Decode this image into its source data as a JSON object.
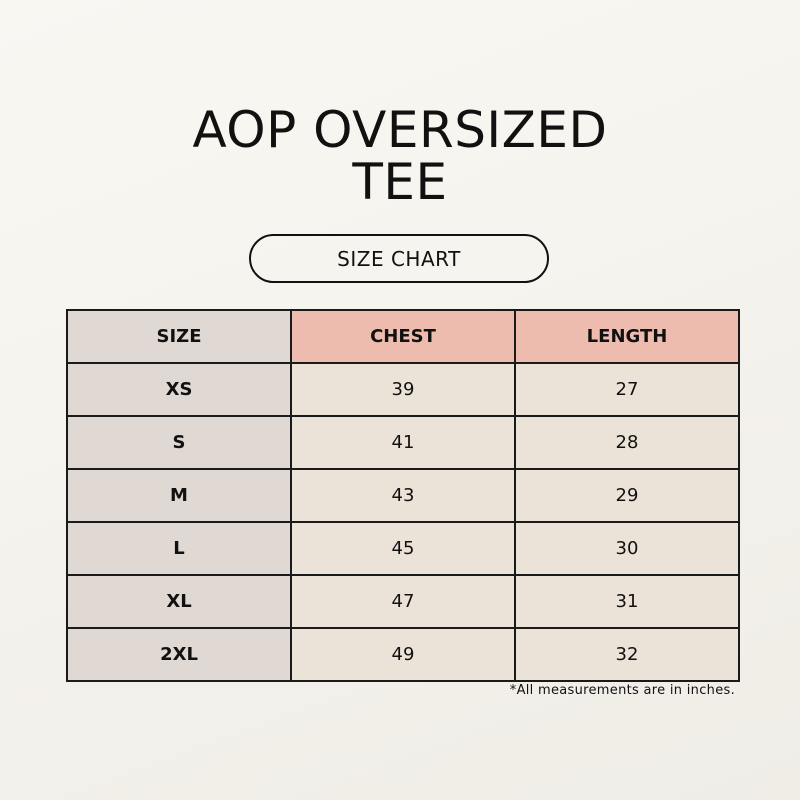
{
  "title_line1": "AOP OVERSIZED",
  "title_line2": "TEE",
  "subtitle": "SIZE CHART",
  "colors": {
    "background": "#f7f5ef",
    "size_column": "#e0d8d3",
    "header": "#eebcae",
    "cells": "#ebe3d8"
  },
  "table": {
    "headers": [
      "SIZE",
      "CHEST",
      "LENGTH"
    ],
    "rows": [
      [
        "XS",
        "39",
        "27"
      ],
      [
        "S",
        "41",
        "28"
      ],
      [
        "M",
        "43",
        "29"
      ],
      [
        "L",
        "45",
        "30"
      ],
      [
        "XL",
        "47",
        "31"
      ],
      [
        "2XL",
        "49",
        "32"
      ]
    ]
  },
  "footnote": "*All measurements are in inches."
}
